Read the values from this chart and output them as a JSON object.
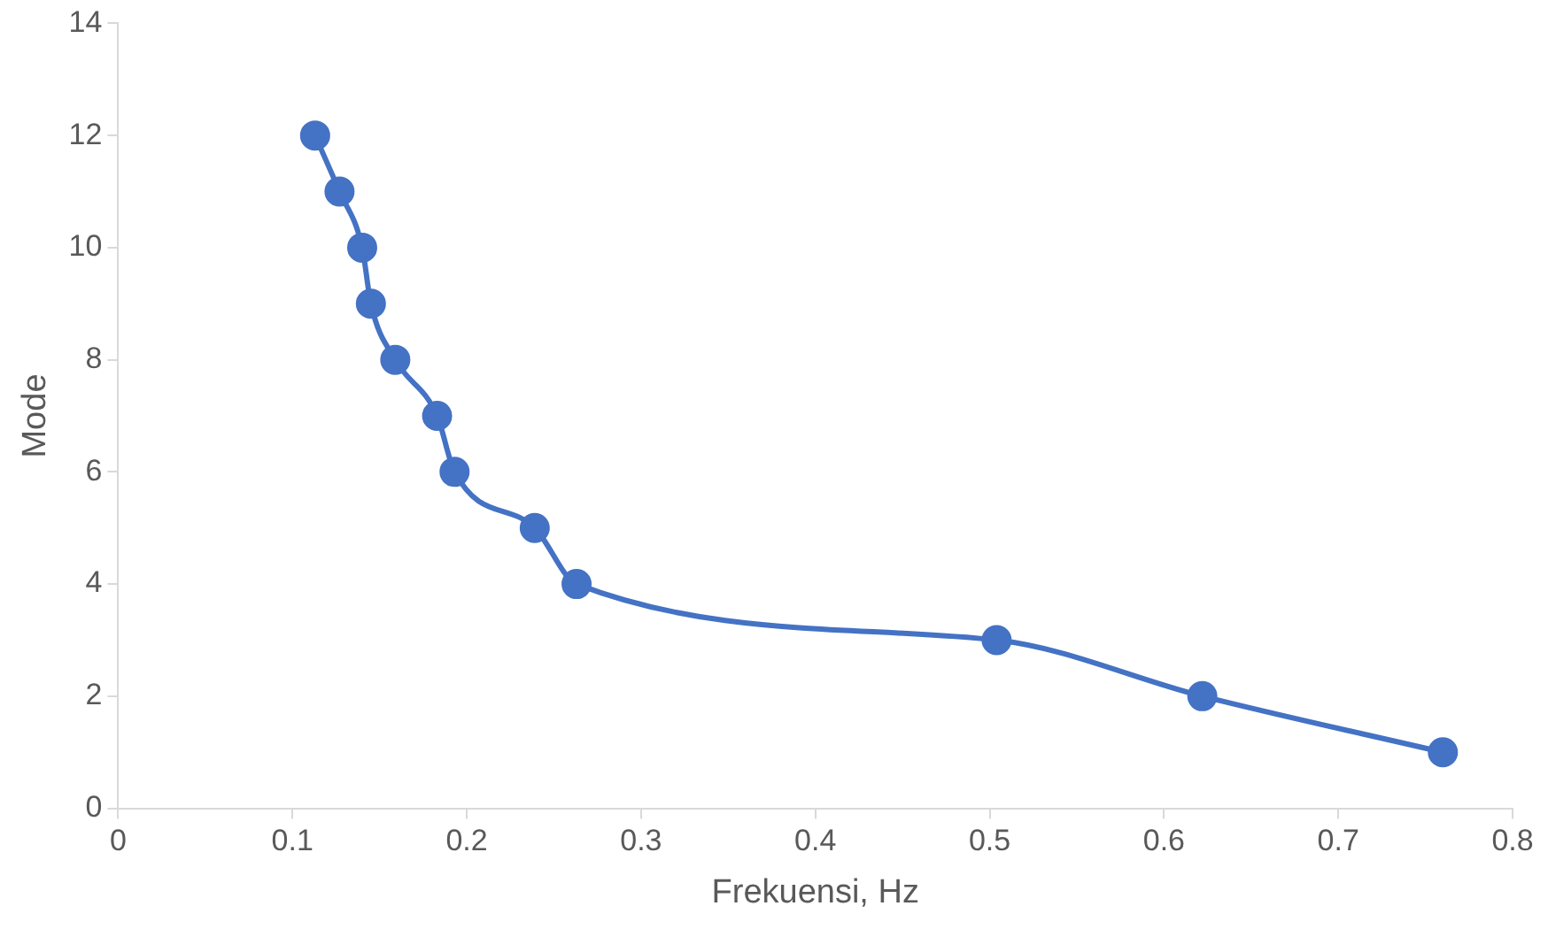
{
  "chart_data": {
    "type": "line",
    "xlabel": "Frekuensi, Hz",
    "ylabel": "Mode",
    "x": [
      0.113,
      0.127,
      0.14,
      0.145,
      0.159,
      0.183,
      0.193,
      0.239,
      0.263,
      0.504,
      0.622,
      0.76
    ],
    "series": [
      {
        "color": "#4472c4",
        "values": [
          12,
          11,
          10,
          9,
          8,
          7,
          6,
          5,
          4,
          3,
          2,
          1
        ]
      }
    ],
    "xlim": [
      0,
      0.8
    ],
    "xticks": [
      0,
      0.1,
      0.2,
      0.3,
      0.4,
      0.5,
      0.6,
      0.7,
      0.8
    ],
    "ylim": [
      0,
      14
    ],
    "yticks": [
      0,
      2,
      4,
      6,
      8,
      10,
      12,
      14
    ],
    "grid": false,
    "legend": false,
    "marker": "circle",
    "line_style": "solid"
  }
}
